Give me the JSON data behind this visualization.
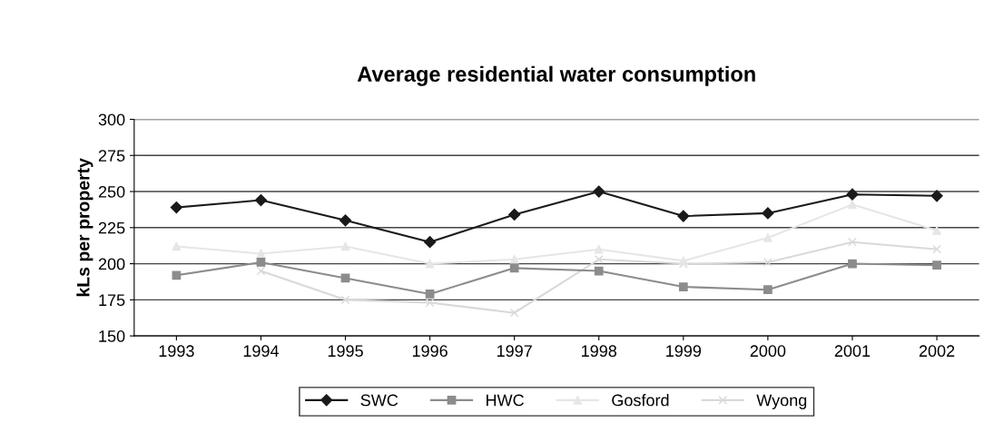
{
  "chart_data": {
    "type": "line",
    "title": "Average residential water consumption",
    "ylabel": "kLs per property",
    "categories": [
      "1993",
      "1994",
      "1995",
      "1996",
      "1997",
      "1998",
      "1999",
      "2000",
      "2001",
      "2002"
    ],
    "series": [
      {
        "name": "SWC",
        "color": "#1a1a1a",
        "marker": "diamond",
        "values": [
          239,
          244,
          230,
          215,
          234,
          250,
          233,
          235,
          248,
          247
        ]
      },
      {
        "name": "HWC",
        "color": "#8c8c8c",
        "marker": "square",
        "values": [
          192,
          201,
          190,
          179,
          197,
          195,
          184,
          182,
          200,
          199
        ]
      },
      {
        "name": "Gosford",
        "color": "#e6e6e6",
        "marker": "triangle",
        "values": [
          212,
          207,
          212,
          200,
          203,
          210,
          202,
          218,
          241,
          223
        ]
      },
      {
        "name": "Wyong",
        "color": "#d9d9d9",
        "marker": "cross",
        "values": [
          null,
          195,
          175,
          173,
          166,
          203,
          200,
          201,
          215,
          210
        ]
      }
    ],
    "ylim": [
      150,
      300
    ],
    "yticks": [
      150,
      175,
      200,
      225,
      250,
      275,
      300
    ],
    "grid": "y",
    "legend": "bottom"
  }
}
